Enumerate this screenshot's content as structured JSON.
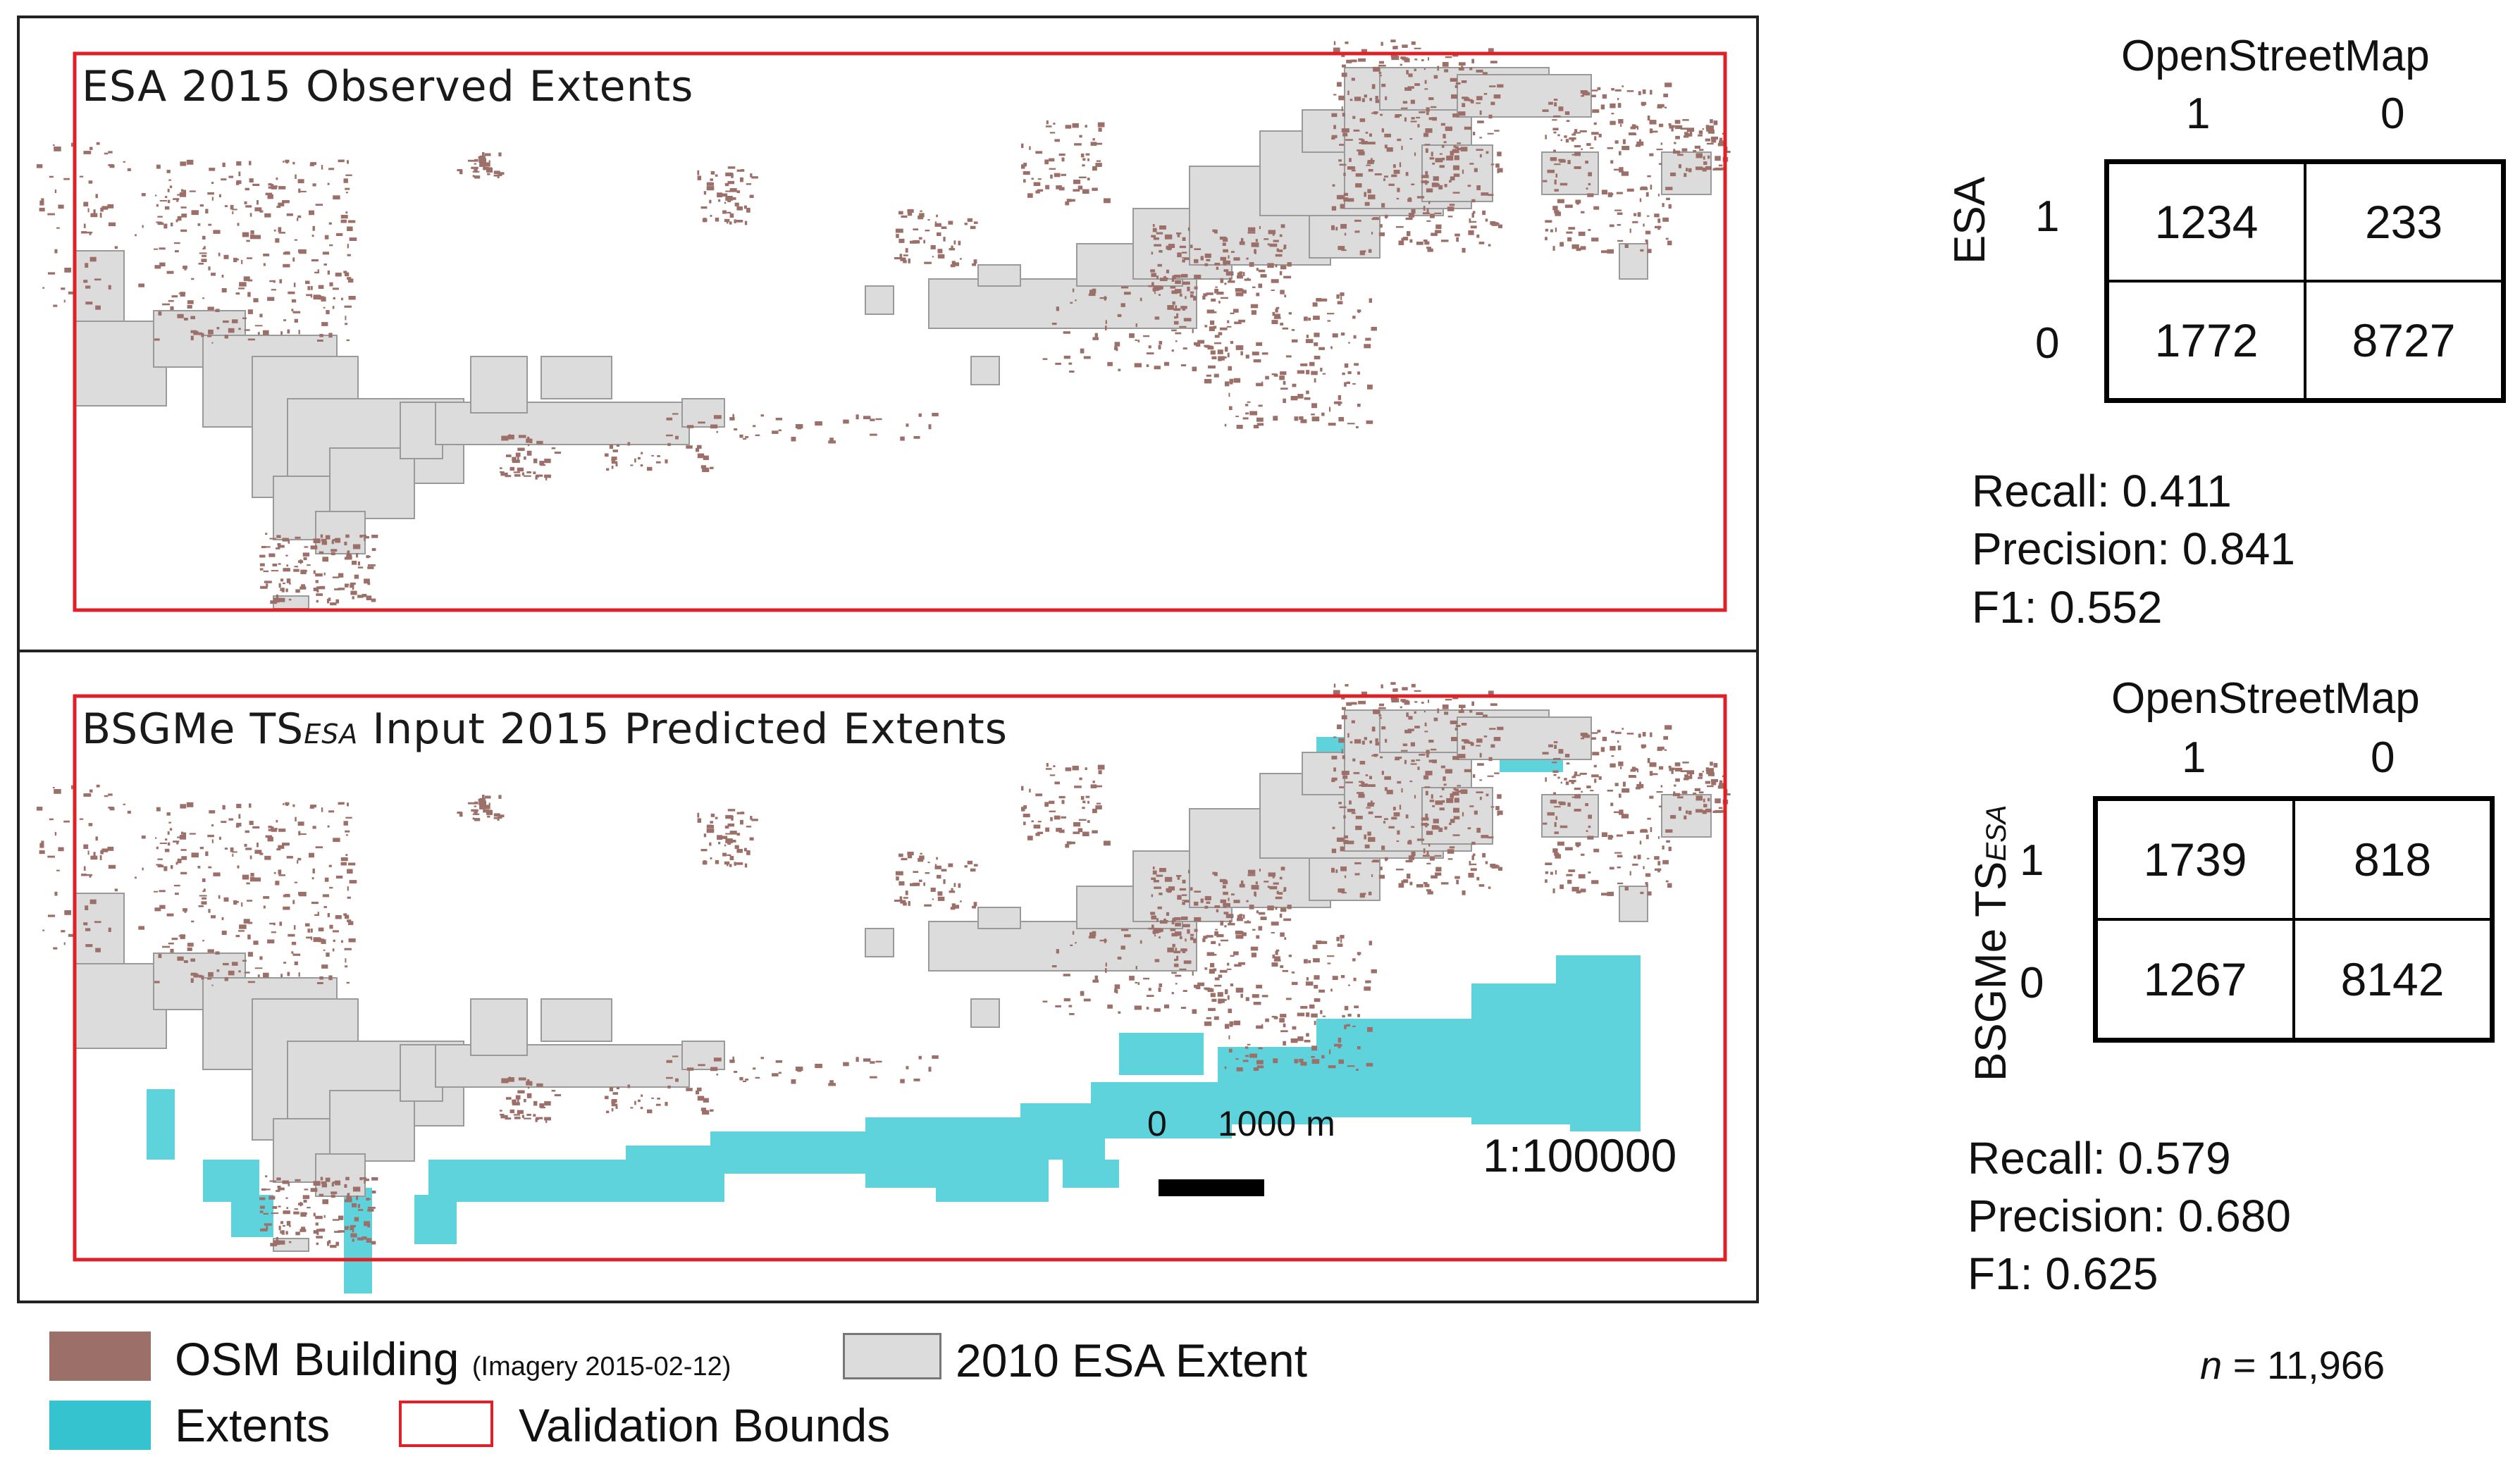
{
  "panels": {
    "top": {
      "title": "ESA 2015 Observed Extents"
    },
    "bottom": {
      "title_pre": "BSGMe TS",
      "title_sub": "ESA",
      "title_post": " Input 2015 Predicted Extents"
    }
  },
  "scale": {
    "zero": "0",
    "distance": "1000 m",
    "ratio": "1:100000"
  },
  "matrices": [
    {
      "col_header": "OpenStreetMap",
      "col_labels": [
        "1",
        "0"
      ],
      "row_header": "ESA",
      "row_labels": [
        "1",
        "0"
      ],
      "cells": [
        [
          "1234",
          "233"
        ],
        [
          "1772",
          "8727"
        ]
      ],
      "recall": "Recall: 0.411",
      "precision": "Precision: 0.841",
      "f1": "F1: 0.552"
    },
    {
      "col_header": "OpenStreetMap",
      "col_labels": [
        "1",
        "0"
      ],
      "row_header_pre": "BSGMe TS",
      "row_header_sub": "ESA",
      "row_labels": [
        "1",
        "0"
      ],
      "cells": [
        [
          "1739",
          "818"
        ],
        [
          "1267",
          "8142"
        ]
      ],
      "recall": "Recall: 0.579",
      "precision": "Precision: 0.680",
      "f1": "F1: 0.625"
    }
  ],
  "n_label": "n",
  "n_value": " = 11,966",
  "legend": {
    "osm_building": "OSM Building",
    "osm_imagery": "(Imagery 2015-02-12)",
    "esa_extent": "2010 ESA Extent",
    "extents": "Extents",
    "validation": "Validation Bounds"
  },
  "colors": {
    "building": "#9c6f68",
    "esa_fill": "#dcdcdc",
    "esa_stroke": "#9a9a9a",
    "extent": "#5fd3dc",
    "bounds": "#e01f26"
  }
}
